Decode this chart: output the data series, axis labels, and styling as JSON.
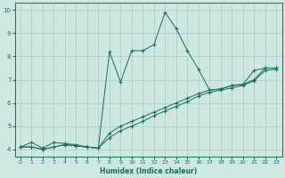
{
  "title": "",
  "xlabel": "Humidex (Indice chaleur)",
  "bg_color": "#cce8e0",
  "line_color": "#1a6b5a",
  "grid_color": "#aaccc4",
  "xlim": [
    -0.5,
    23.5
  ],
  "ylim": [
    3.7,
    10.3
  ],
  "xticks": [
    0,
    1,
    2,
    3,
    4,
    5,
    6,
    7,
    8,
    9,
    10,
    11,
    12,
    13,
    14,
    15,
    16,
    17,
    18,
    19,
    20,
    21,
    22,
    23
  ],
  "yticks": [
    4,
    5,
    6,
    7,
    8,
    9,
    10
  ],
  "series": [
    {
      "x": [
        0,
        1,
        2,
        3,
        4,
        5,
        6,
        7,
        8,
        9,
        10,
        11,
        12,
        13,
        14,
        15,
        16,
        17,
        18,
        19,
        20,
        21,
        22,
        23
      ],
      "y": [
        4.1,
        4.3,
        4.05,
        4.3,
        4.25,
        4.2,
        4.1,
        4.05,
        8.2,
        6.9,
        8.25,
        8.25,
        8.5,
        9.9,
        9.2,
        8.25,
        7.45,
        6.55,
        6.6,
        6.75,
        6.8,
        7.4,
        7.5,
        7.5
      ]
    },
    {
      "x": [
        0,
        1,
        2,
        3,
        4,
        5,
        6,
        7,
        8,
        9,
        10,
        11,
        12,
        13,
        14,
        15,
        16,
        17,
        18,
        19,
        20,
        21,
        22,
        23
      ],
      "y": [
        4.1,
        4.1,
        4.0,
        4.1,
        4.2,
        4.15,
        4.1,
        4.05,
        4.7,
        5.0,
        5.2,
        5.4,
        5.6,
        5.8,
        6.0,
        6.2,
        6.4,
        6.55,
        6.6,
        6.75,
        6.8,
        7.0,
        7.5,
        7.5
      ]
    },
    {
      "x": [
        0,
        1,
        2,
        3,
        4,
        5,
        6,
        7,
        8,
        9,
        10,
        11,
        12,
        13,
        14,
        15,
        16,
        17,
        18,
        19,
        20,
        21,
        22,
        23
      ],
      "y": [
        4.1,
        4.1,
        4.0,
        4.1,
        4.2,
        4.15,
        4.1,
        4.05,
        4.5,
        4.8,
        5.0,
        5.2,
        5.45,
        5.65,
        5.85,
        6.05,
        6.3,
        6.45,
        6.55,
        6.65,
        6.75,
        6.95,
        7.4,
        7.45
      ]
    }
  ]
}
